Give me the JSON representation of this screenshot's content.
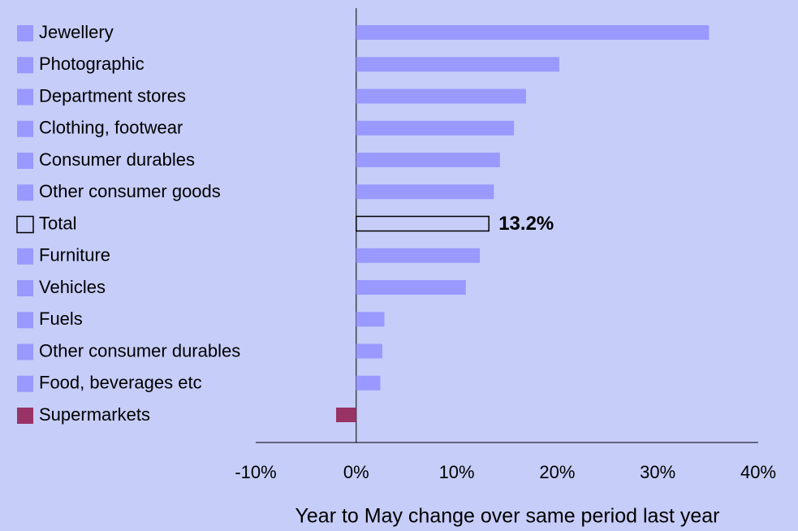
{
  "chart_data": {
    "type": "barh",
    "xlabel": "Year to May change over same period last year",
    "categories": [
      "Jewellery",
      "Photographic",
      "Department stores",
      "Clothing, footwear",
      "Consumer durables",
      "Other consumer goods",
      "Total",
      "Furniture",
      "Vehicles",
      "Fuels",
      "Other consumer durables",
      "Food, beverages etc",
      "Supermarkets"
    ],
    "values": [
      35.1,
      20.2,
      16.9,
      15.7,
      14.3,
      13.7,
      13.2,
      12.3,
      10.9,
      2.8,
      2.6,
      2.4,
      -2.0
    ],
    "value_labels": [
      null,
      null,
      null,
      null,
      null,
      null,
      "13.2%",
      null,
      null,
      null,
      null,
      null,
      null
    ],
    "colors": [
      "#9999ff",
      "#9999ff",
      "#9999ff",
      "#9999ff",
      "#9999ff",
      "#9999ff",
      "none",
      "#9999ff",
      "#9999ff",
      "#9999ff",
      "#9999ff",
      "#9999ff",
      "#993366"
    ],
    "xlim": [
      -10,
      40
    ],
    "xticks": [
      {
        "value": -10,
        "label": "-10%"
      },
      {
        "value": 0,
        "label": "0%"
      },
      {
        "value": 10,
        "label": "10%"
      },
      {
        "value": 20,
        "label": "20%"
      },
      {
        "value": 30,
        "label": "30%"
      },
      {
        "value": 40,
        "label": "40%"
      }
    ],
    "grid": false
  }
}
